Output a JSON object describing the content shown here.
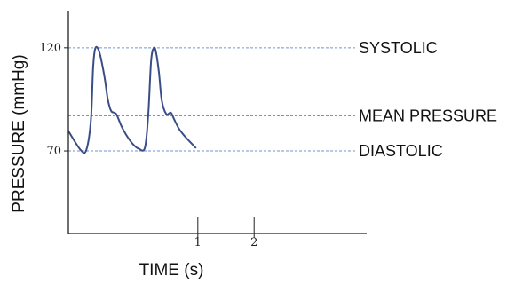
{
  "chart_data": {
    "type": "line",
    "xlabel": "TIME (s)",
    "ylabel": "PRESSURE (mmHg)",
    "xlim": [
      -1.3,
      4.0
    ],
    "ylim": [
      30,
      138
    ],
    "x_ticks": [
      {
        "value": 1,
        "label": "1"
      },
      {
        "value": 2,
        "label": "2"
      }
    ],
    "y_ticks": [
      {
        "value": 120,
        "label": "120"
      },
      {
        "value": 70,
        "label": "70"
      }
    ],
    "reference_lines": [
      {
        "value": 120,
        "label": "SYSTOLIC"
      },
      {
        "value": 87,
        "label": "MEAN PRESSURE"
      },
      {
        "value": 70,
        "label": "DIASTOLIC"
      }
    ],
    "series": [
      {
        "color": "#3b4d86",
        "x": [
          -1.3,
          -1.08,
          -0.98,
          -0.9,
          -0.86,
          -0.82,
          -0.75,
          -0.66,
          -0.6,
          -0.54,
          -0.45,
          -0.36,
          -0.27,
          -0.16,
          -0.05,
          0.06,
          0.12,
          0.17,
          0.22,
          0.26,
          0.31,
          0.36,
          0.44,
          0.52,
          0.58,
          0.66,
          0.75,
          0.85,
          0.96
        ],
        "y": [
          79.7,
          70.4,
          70.6,
          84.9,
          110.5,
          119.9,
          117.9,
          106.2,
          95.1,
          89.4,
          87.9,
          82.2,
          77.7,
          73.5,
          71.1,
          71.6,
          87.9,
          113.7,
          120.0,
          117.4,
          107.8,
          94.4,
          87.9,
          88.6,
          85.3,
          81.0,
          77.7,
          74.7,
          71.6
        ]
      }
    ],
    "grid": false
  },
  "colors": {
    "curve": "#3b4d86",
    "reference_line": "#6e96d2",
    "axis": "#222222"
  }
}
